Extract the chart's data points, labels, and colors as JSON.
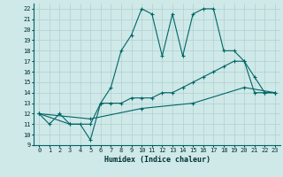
{
  "title": "",
  "xlabel": "Humidex (Indice chaleur)",
  "background_color": "#cfe8e8",
  "grid_color": "#b0d0d0",
  "line_color": "#006666",
  "xlim": [
    -0.5,
    23.5
  ],
  "ylim": [
    9,
    22.5
  ],
  "xticks": [
    0,
    1,
    2,
    3,
    4,
    5,
    6,
    7,
    8,
    9,
    10,
    11,
    12,
    13,
    14,
    15,
    16,
    17,
    18,
    19,
    20,
    21,
    22,
    23
  ],
  "yticks": [
    9,
    10,
    11,
    12,
    13,
    14,
    15,
    16,
    17,
    18,
    19,
    20,
    21,
    22
  ],
  "lines": [
    {
      "x": [
        0,
        1,
        2,
        3,
        4,
        5,
        6,
        7,
        8,
        9,
        10,
        11,
        12,
        13,
        14,
        15,
        16,
        17,
        18,
        19,
        20,
        21,
        22,
        23
      ],
      "y": [
        12,
        11,
        12,
        11,
        11,
        9.5,
        13,
        14.5,
        18,
        19.5,
        22,
        21.5,
        17.5,
        21.5,
        17.5,
        21.5,
        22,
        22,
        18,
        18,
        17,
        15.5,
        14,
        14
      ]
    },
    {
      "x": [
        0,
        3,
        5,
        6,
        7,
        8,
        9,
        10,
        11,
        12,
        13,
        14,
        15,
        16,
        17,
        18,
        19,
        20,
        21,
        22,
        23
      ],
      "y": [
        12,
        11,
        11,
        13,
        13,
        13,
        13.5,
        13.5,
        13.5,
        14,
        14,
        14.5,
        15,
        15.5,
        16,
        16.5,
        17,
        17,
        14,
        14,
        14
      ]
    },
    {
      "x": [
        0,
        5,
        10,
        15,
        20,
        23
      ],
      "y": [
        12,
        11.5,
        12.5,
        13,
        14.5,
        14
      ]
    }
  ]
}
